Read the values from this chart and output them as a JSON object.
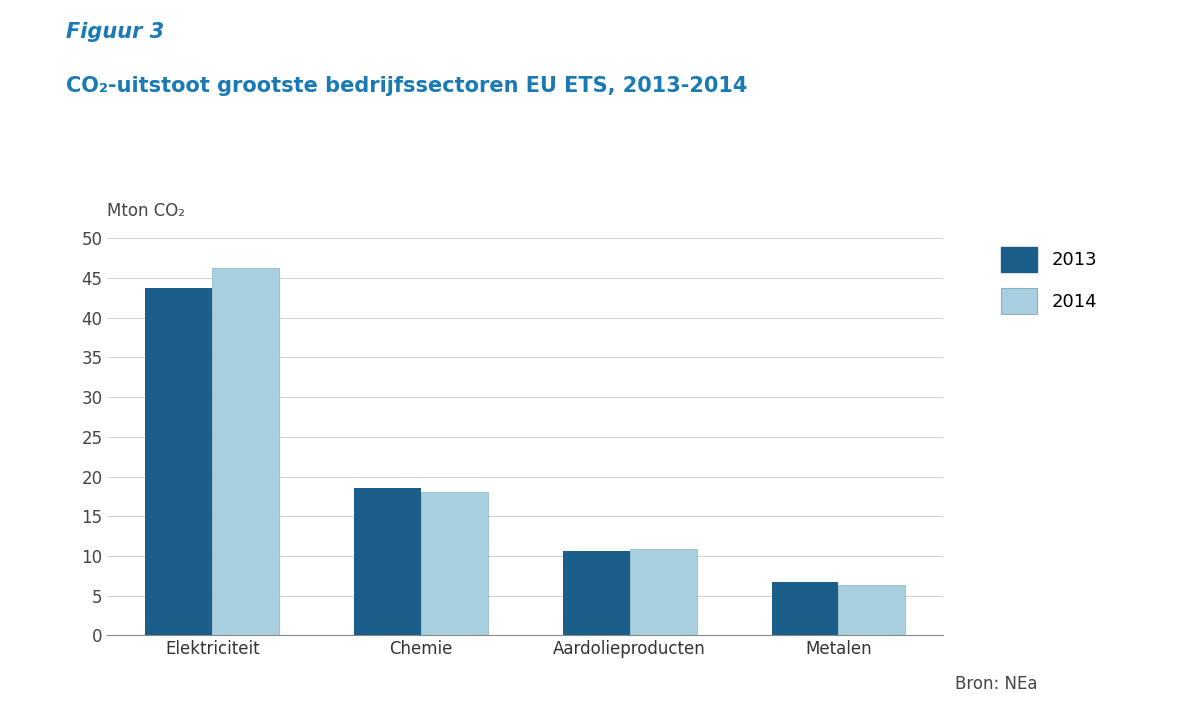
{
  "title_line1": "Figuur 3",
  "title_line2": "CO₂-uitstoot grootste bedrijfssectoren EU ETS, 2013-2014",
  "ylabel": "Mton CO₂",
  "categories": [
    "Elektriciteit",
    "Chemie",
    "Aardolieproducten",
    "Metalen"
  ],
  "values_2013": [
    43.8,
    18.5,
    10.6,
    6.7
  ],
  "values_2014": [
    46.3,
    18.1,
    10.9,
    6.4
  ],
  "color_2013": "#1b5e8a",
  "color_2014": "#a8cfe0",
  "ylim": [
    0,
    50
  ],
  "yticks": [
    0,
    5,
    10,
    15,
    20,
    25,
    30,
    35,
    40,
    45,
    50
  ],
  "legend_labels": [
    "2013",
    "2014"
  ],
  "source_text": "Bron: NEa",
  "bar_width": 0.32,
  "title_color": "#1a7ab5",
  "figuur_label": "Figuur 3",
  "background_color": "#ffffff",
  "legend_edge_2014": "#8ab0c8"
}
